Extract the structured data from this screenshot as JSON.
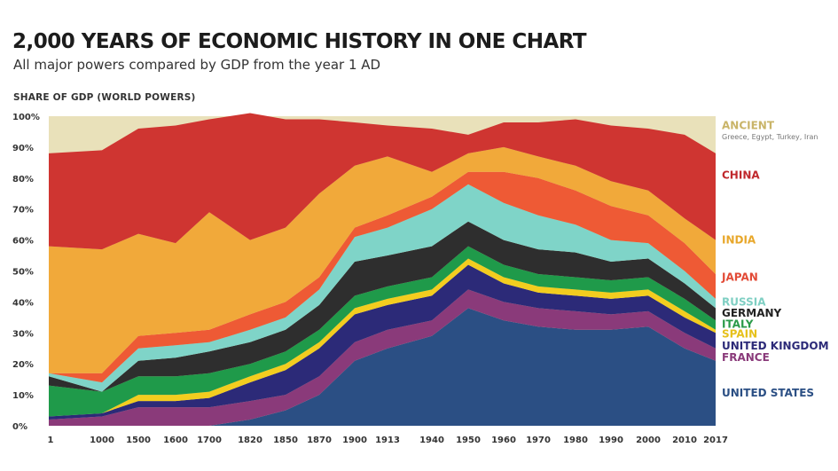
{
  "chart_data": {
    "type": "area",
    "stacked": true,
    "title": "2,000 YEARS OF ECONOMIC HISTORY IN ONE CHART",
    "subtitle": "All major powers compared by GDP from the year 1 AD",
    "ylabel": "SHARE OF GDP (WORLD POWERS)",
    "ylim": [
      0,
      100
    ],
    "yticks": [
      "0%",
      "10%",
      "20%",
      "30%",
      "40%",
      "50%",
      "60%",
      "70%",
      "80%",
      "90%",
      "100%"
    ],
    "x": [
      "1",
      "1000",
      "1500",
      "1600",
      "1700",
      "1820",
      "1850",
      "1870",
      "1900",
      "1913",
      "1940",
      "1950",
      "1960",
      "1970",
      "1980",
      "1990",
      "2000",
      "2010",
      "2017"
    ],
    "series": [
      {
        "name": "UNITED STATES",
        "color": "#2b4f84",
        "values": [
          0,
          0,
          0,
          0,
          0,
          2,
          5,
          10,
          21,
          25,
          29,
          38,
          34,
          32,
          31,
          31,
          32,
          25,
          21
        ]
      },
      {
        "name": "FRANCE",
        "color": "#8a3a7a",
        "values": [
          2,
          3,
          6,
          6,
          6,
          6,
          5,
          6,
          6,
          6,
          5,
          6,
          6,
          6,
          6,
          5,
          5,
          5,
          4
        ]
      },
      {
        "name": "UNITED KINGDOM",
        "color": "#2c2a78",
        "values": [
          1,
          1,
          2,
          2,
          3,
          6,
          8,
          9,
          9,
          8,
          8,
          8,
          6,
          5,
          5,
          5,
          5,
          5,
          5
        ]
      },
      {
        "name": "SPAIN",
        "color": "#f3cd1f",
        "values": [
          0,
          0,
          2,
          2,
          2,
          2,
          2,
          2,
          2,
          2,
          2,
          2,
          2,
          2,
          2,
          2,
          2,
          2,
          1
        ]
      },
      {
        "name": "ITALY",
        "color": "#f08b30",
        "values": [
          0,
          0,
          0,
          0,
          0,
          0,
          0,
          0,
          0,
          0,
          0,
          0,
          0,
          0,
          0,
          0,
          0,
          0,
          0
        ]
      },
      {
        "name": "GERMANY",
        "color": "#1f9a4a",
        "values": [
          10,
          7,
          6,
          6,
          6,
          4,
          4,
          4,
          4,
          4,
          4,
          4,
          4,
          4,
          4,
          4,
          4,
          4,
          3
        ]
      },
      {
        "name": "RUSSIA",
        "color": "#2e2e2e",
        "values": [
          3,
          0,
          5,
          6,
          7,
          7,
          7,
          8,
          11,
          10,
          10,
          8,
          8,
          8,
          8,
          6,
          6,
          5,
          4
        ]
      },
      {
        "name": "JAPAN",
        "color": "#7fd4c8",
        "values": [
          1,
          3,
          4,
          4,
          3,
          4,
          4,
          5,
          8,
          9,
          12,
          12,
          12,
          11,
          9,
          7,
          5,
          4,
          3
        ]
      },
      {
        "name": "INDIA",
        "color": "#ee5a35",
        "values": [
          0,
          3,
          4,
          4,
          4,
          5,
          5,
          4,
          3,
          4,
          4,
          4,
          10,
          12,
          11,
          11,
          9,
          9,
          8
        ]
      },
      {
        "name": "CHINA",
        "color": "#f1a93a",
        "values": [
          41,
          40,
          33,
          29,
          38,
          24,
          24,
          27,
          20,
          19,
          8,
          6,
          8,
          7,
          8,
          8,
          8,
          8,
          11
        ]
      },
      {
        "name": "ANCIENT",
        "color": "#cf3531",
        "values": [
          30,
          32,
          34,
          38,
          30,
          41,
          35,
          24,
          14,
          10,
          14,
          6,
          8,
          11,
          15,
          18,
          20,
          27,
          28
        ]
      }
    ],
    "labels": [
      {
        "text": "ANCIENT",
        "color": "#c9b468",
        "y": 97
      },
      {
        "text": "CHINA",
        "color": "#c0282c",
        "y": 81
      },
      {
        "text": "INDIA",
        "color": "#e8a72a",
        "y": 60
      },
      {
        "text": "JAPAN",
        "color": "#e24a36",
        "y": 48
      },
      {
        "text": "RUSSIA",
        "color": "#7fcfc3",
        "y": 40
      },
      {
        "text": "GERMANY",
        "color": "#222222",
        "y": 36.4
      },
      {
        "text": "ITALY",
        "color": "#2a9a48",
        "y": 32.8
      },
      {
        "text": "SPAIN",
        "color": "#e6c11b",
        "y": 29.6
      },
      {
        "text": "UNITED KINGDOM",
        "color": "#2c2a78",
        "y": 25.8
      },
      {
        "text": "FRANCE",
        "color": "#8a3a7a",
        "y": 22
      },
      {
        "text": "UNITED STATES",
        "color": "#2b4f84",
        "y": 10.6
      }
    ],
    "ancient_note": "Greece, Egypt, Turkey, Iran",
    "top_color": "#e9e1ba"
  }
}
